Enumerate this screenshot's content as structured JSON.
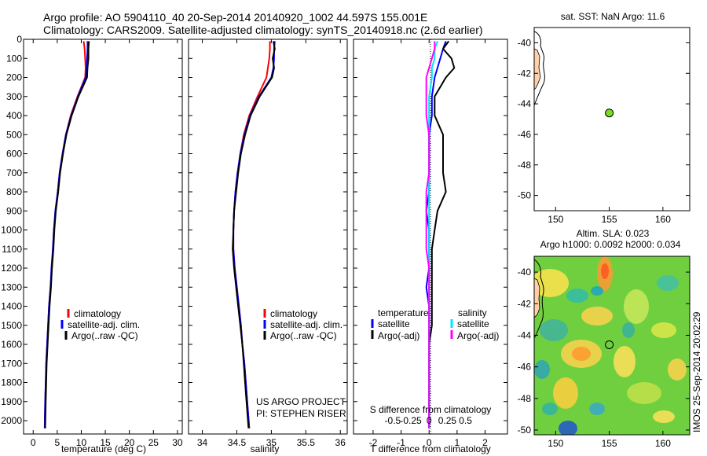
{
  "header": {
    "line1": "Argo profile: AO 5904110_40 20-Sep-2014 20140920_1002 44.597S 155.001E",
    "line2": "Climatology: CARS2009. Satellite-adjusted climatology: synTS_20140918.nc (2.6d earlier)"
  },
  "colors": {
    "climatology": "#ff0000",
    "satellite": "#0000ff",
    "argo": "#000000",
    "sal_satellite": "#00e5ff",
    "sal_argo": "#ff00ff",
    "point_fill": "#77dd22"
  },
  "chart_data": [
    {
      "type": "line",
      "panel": "temperature",
      "xlabel": "temperature (deg C)",
      "ylabel": "",
      "xlim": [
        -2,
        31
      ],
      "ylim": [
        2070,
        0
      ],
      "xticks": [
        0,
        5,
        10,
        15,
        20,
        25,
        30
      ],
      "yticks": [
        0,
        100,
        200,
        300,
        400,
        500,
        600,
        700,
        800,
        900,
        1000,
        1100,
        1200,
        1300,
        1400,
        1500,
        1600,
        1700,
        1800,
        1900,
        2000
      ],
      "legend": [
        "climatology",
        "satellite-adj. clim.",
        "Argo(..raw -QC)"
      ],
      "legend_placement": "lower-right",
      "series": [
        {
          "name": "climatology",
          "color": "#ff0000",
          "x": [
            10.5,
            10.7,
            10.8,
            10.9,
            10.8,
            9.2,
            7.8,
            6.8,
            6.1,
            5.5,
            5.1,
            4.7,
            4.3,
            4.1,
            3.9,
            3.6,
            3.3,
            3.1,
            2.9,
            2.7,
            2.6,
            2.5,
            2.4
          ],
          "y": [
            10,
            50,
            100,
            150,
            200,
            300,
            400,
            500,
            600,
            700,
            800,
            900,
            1000,
            1100,
            1200,
            1300,
            1400,
            1500,
            1600,
            1700,
            1800,
            1900,
            2040
          ]
        },
        {
          "name": "satellite-adj. clim.",
          "color": "#0000ff",
          "x": [
            11.3,
            11.3,
            11.2,
            11.1,
            10.9,
            9.3,
            7.9,
            6.8,
            6.1,
            5.5,
            5.1,
            4.6,
            4.3,
            4.1,
            3.8,
            3.6,
            3.3,
            3.1,
            2.9,
            2.7,
            2.6,
            2.5,
            2.4
          ],
          "y": [
            10,
            50,
            100,
            150,
            200,
            300,
            400,
            500,
            600,
            700,
            800,
            900,
            1000,
            1100,
            1200,
            1300,
            1400,
            1500,
            1600,
            1700,
            1800,
            1900,
            2040
          ]
        },
        {
          "name": "Argo(..raw -QC)",
          "color": "#000000",
          "x": [
            11.6,
            11.5,
            11.5,
            11.3,
            11.2,
            9.4,
            8.0,
            6.9,
            6.2,
            5.6,
            5.2,
            4.7,
            4.4,
            4.2,
            3.9,
            3.7,
            3.4,
            3.2,
            3.0,
            2.8,
            2.7,
            2.6,
            2.5
          ],
          "y": [
            10,
            50,
            100,
            150,
            200,
            300,
            400,
            500,
            600,
            700,
            800,
            900,
            1000,
            1100,
            1200,
            1300,
            1400,
            1500,
            1600,
            1700,
            1800,
            1900,
            2040
          ]
        }
      ]
    },
    {
      "type": "line",
      "panel": "salinity",
      "xlabel": "salinity",
      "xlim": [
        33.8,
        36.1
      ],
      "ylim": [
        2070,
        0
      ],
      "xticks": [
        34,
        34.5,
        35,
        35.5,
        36
      ],
      "legend": [
        "climatology",
        "satellite-adj. clim.",
        "Argo(..raw -QC)"
      ],
      "legend_placement": "lower-right",
      "annotation": [
        "US ARGO PROJECT",
        "PI: STEPHEN RISER"
      ],
      "series": [
        {
          "name": "climatology",
          "color": "#ff0000",
          "x": [
            34.98,
            34.98,
            34.97,
            34.95,
            34.93,
            34.8,
            34.68,
            34.6,
            34.55,
            34.51,
            34.48,
            34.46,
            34.45,
            34.45,
            34.47,
            34.5,
            34.53,
            34.56,
            34.58,
            34.61,
            34.63,
            34.65,
            34.68
          ],
          "y": [
            10,
            50,
            100,
            150,
            200,
            300,
            400,
            500,
            600,
            700,
            800,
            900,
            1000,
            1100,
            1200,
            1300,
            1400,
            1500,
            1600,
            1700,
            1800,
            1900,
            2040
          ]
        },
        {
          "name": "satellite-adj. clim.",
          "color": "#0000ff",
          "x": [
            35.05,
            35.04,
            35.04,
            35.03,
            35.0,
            34.82,
            34.69,
            34.61,
            34.55,
            34.51,
            34.48,
            34.46,
            34.45,
            34.45,
            34.47,
            34.5,
            34.53,
            34.56,
            34.58,
            34.61,
            34.63,
            34.65,
            34.68
          ],
          "y": [
            10,
            50,
            100,
            150,
            200,
            300,
            400,
            500,
            600,
            700,
            800,
            900,
            1000,
            1100,
            1200,
            1300,
            1400,
            1500,
            1600,
            1700,
            1800,
            1900,
            2040
          ]
        },
        {
          "name": "Argo(..raw -QC)",
          "color": "#000000",
          "x": [
            35.03,
            35.05,
            35.02,
            35.04,
            35.01,
            34.83,
            34.7,
            34.62,
            34.56,
            34.52,
            34.49,
            34.46,
            34.45,
            34.44,
            34.46,
            34.49,
            34.52,
            34.55,
            34.58,
            34.6,
            34.62,
            34.64,
            34.67
          ],
          "y": [
            10,
            50,
            100,
            150,
            200,
            300,
            400,
            500,
            600,
            700,
            800,
            900,
            1000,
            1100,
            1200,
            1300,
            1400,
            1500,
            1600,
            1700,
            1800,
            1900,
            2040
          ]
        }
      ]
    },
    {
      "type": "line",
      "panel": "difference",
      "xlabel": "T difference from climatology",
      "xlabel_top": "S difference from climatology",
      "xlim": [
        -2.7,
        2.8
      ],
      "ylim": [
        2070,
        0
      ],
      "xticks": [
        -2,
        -1,
        0,
        1,
        2
      ],
      "xticks_s": [
        -0.5,
        -0.25,
        0,
        0.25,
        0.5
      ],
      "legend_temperature": [
        "temperature",
        "satellite",
        "Argo(-adj)"
      ],
      "legend_salinity": [
        "salinity",
        "satellite",
        "Argo(-adj)"
      ],
      "legend_placement": "lower",
      "series": [
        {
          "name": "satellite",
          "group": "temperature",
          "color": "#0000ff",
          "x": [
            0.6,
            0.5,
            0.4,
            0.3,
            0.2,
            0.1,
            0.1,
            0.0,
            0.0,
            0.0,
            0.0,
            -0.1,
            0.0,
            0.0,
            0.0,
            -0.1,
            0.0,
            0.0,
            0.0,
            0.0,
            0.0,
            0.0,
            0.0
          ],
          "y": [
            10,
            50,
            100,
            150,
            200,
            300,
            400,
            500,
            600,
            700,
            800,
            900,
            1000,
            1100,
            1200,
            1300,
            1400,
            1500,
            1600,
            1700,
            1800,
            1900,
            2040
          ]
        },
        {
          "name": "Argo(-adj)",
          "group": "temperature",
          "color": "#000000",
          "x": [
            0.7,
            0.5,
            0.8,
            0.9,
            0.6,
            0.2,
            0.2,
            0.5,
            0.5,
            0.5,
            0.6,
            0.3,
            0.2,
            0.1,
            0.1,
            0.1,
            0.1,
            0.1,
            0.0,
            0.0,
            0.0,
            0.0,
            0.0
          ],
          "y": [
            10,
            50,
            100,
            150,
            200,
            300,
            400,
            500,
            600,
            700,
            800,
            900,
            1000,
            1100,
            1200,
            1300,
            1400,
            1500,
            1600,
            1700,
            1800,
            1900,
            2040
          ]
        },
        {
          "name": "satellite",
          "group": "salinity",
          "color": "#00e5ff",
          "x": [
            0.3,
            0.2,
            0.2,
            0.1,
            0.1,
            0.0,
            0.0,
            0.0,
            0.0,
            0.0,
            0.0,
            0.0,
            0.0,
            0.0,
            0.0,
            0.0,
            0.0,
            0.0,
            0.0,
            0.0,
            0.0,
            0.0,
            0.0
          ],
          "y": [
            10,
            50,
            100,
            150,
            200,
            300,
            400,
            500,
            600,
            700,
            800,
            900,
            1000,
            1100,
            1200,
            1300,
            1400,
            1500,
            1600,
            1700,
            1800,
            1900,
            2040
          ]
        },
        {
          "name": "Argo(-adj)",
          "group": "salinity",
          "color": "#ff00ff",
          "x": [
            0.2,
            0.2,
            0.1,
            0.0,
            -0.1,
            -0.1,
            -0.1,
            0.0,
            0.0,
            0.0,
            -0.1,
            -0.1,
            -0.1,
            -0.1,
            0.0,
            0.0,
            0.0,
            0.0,
            0.0,
            0.0,
            0.0,
            0.0,
            0.0
          ],
          "y": [
            10,
            50,
            100,
            150,
            200,
            300,
            400,
            500,
            600,
            700,
            800,
            900,
            1000,
            1100,
            1200,
            1300,
            1400,
            1500,
            1600,
            1700,
            1800,
            1900,
            2040
          ]
        }
      ]
    },
    {
      "type": "scatter",
      "panel": "map-sst",
      "title": "sat. SST: NaN Argo: 11.6",
      "xlim": [
        148,
        162.5
      ],
      "ylim": [
        -51,
        -39
      ],
      "xticks": [
        150,
        155,
        160
      ],
      "yticks": [
        -40,
        -42,
        -44,
        -46,
        -48,
        -50
      ],
      "points": [
        {
          "x": 155.0,
          "y": -44.6
        }
      ]
    },
    {
      "type": "heatmap",
      "panel": "map-sla",
      "title": "Altim. SLA: 0.023",
      "subtitle": "Argo h1000: 0.0092 h2000: 0.034",
      "xlim": [
        148,
        162.5
      ],
      "ylim": [
        -50.3,
        -39
      ],
      "xticks": [
        150,
        155,
        160
      ],
      "yticks": [
        -40,
        -42,
        -44,
        -46,
        -48,
        -50
      ],
      "points": [
        {
          "x": 155.0,
          "y": -44.6
        }
      ]
    }
  ],
  "side_label": "IMOS 25-Sep-2014 20:02:29"
}
